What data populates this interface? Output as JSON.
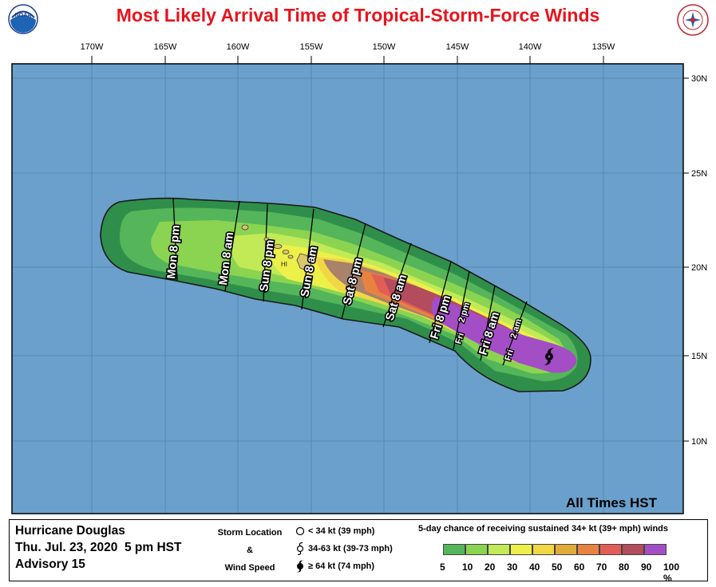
{
  "title": "Most Likely Arrival Time of Tropical-Storm-Force Winds",
  "logos": {
    "left": "noaa-logo",
    "left_text": "NOAA",
    "right": "nws-logo"
  },
  "map": {
    "ocean_color": "#6aa0cb",
    "grid_color": "#4f83aa",
    "longitudes": [
      "170W",
      "165W",
      "160W",
      "155W",
      "150W",
      "145W",
      "140W",
      "135W"
    ],
    "latitudes": [
      "30N",
      "25N",
      "20N",
      "15N",
      "10N"
    ],
    "island_label": "HI",
    "time_labels": [
      "Mon 8 pm",
      "Mon 8 am",
      "Sun 8 pm",
      "Sun 8 am",
      "Sat 8 pm",
      "Sat 8 am",
      "Fri 8 pm",
      "Fri",
      "2 pm",
      "Fri 8 am",
      "Fri",
      "2 am"
    ],
    "all_times": "All Times HST"
  },
  "legend": {
    "storm_name": "Hurricane Douglas",
    "datetime": "Thu. Jul. 23, 2020  5 pm HST",
    "advisory": "Advisory 15",
    "loc_title_1": "Storm Location",
    "loc_title_2": "&",
    "loc_title_3": "Wind Speed",
    "wind_speeds": [
      "< 34 kt (39 mph)",
      "34-63 kt (39-73 mph)",
      "≥ 64 kt (74 mph)"
    ],
    "prob_title": "5-day chance of receiving sustained 34+ kt (39+ mph) winds",
    "scale_colors": [
      "#55b55a",
      "#8ad451",
      "#c2ea56",
      "#eef04a",
      "#f1d645",
      "#e1ab39",
      "#e88240",
      "#e25d56",
      "#b34c5c",
      "#a44ec6"
    ],
    "scale_labels": [
      "5",
      "10",
      "20",
      "30",
      "40",
      "50",
      "60",
      "70",
      "80",
      "90",
      "100 %"
    ]
  }
}
